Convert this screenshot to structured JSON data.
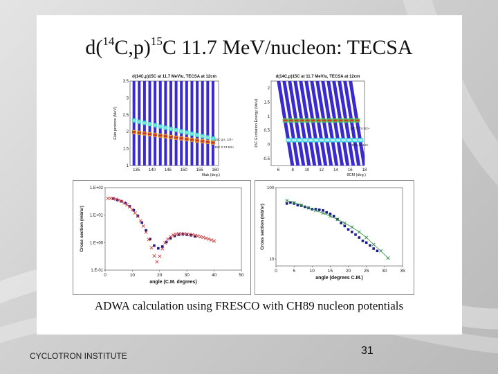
{
  "slide": {
    "title_main": "d(",
    "title_sup1": "14",
    "title_mid": "C,p)",
    "title_sup2": "15",
    "title_rest": "C 11.7 MeV/nucleon: TECSA",
    "caption": "ADWA calculation using FRESCO with CH89 nucleon potentials",
    "footer_left": "CYCLOTRON INSTITUTE",
    "page_number": "31"
  },
  "chart_data": [
    {
      "type": "heatmap",
      "title": "d(14C,p)15C at 11.7 MeV/u, TECSA at 12cm",
      "xlabel": "θlab (deg.)",
      "ylabel": "Elab protons (MeV)",
      "xlim": [
        133,
        161
      ],
      "ylim": [
        1,
        3.5
      ],
      "x_ticks": [
        "135",
        "140",
        "145",
        "150",
        "155",
        "160"
      ],
      "y_ticks": [
        "1",
        "1.5",
        "2",
        "2.5",
        "3",
        "3.5"
      ],
      "annotations": [
        "15C g.s. 1/2+",
        "15C 0.74 5/2+"
      ]
    },
    {
      "type": "heatmap",
      "title": "d(14C,p)15C at 11.7 MeV/u, TECSA at 12cm",
      "xlabel": "θCM (deg.)",
      "ylabel": "15C Excitation Energy (MeV)",
      "xlim": [
        5,
        18
      ],
      "ylim": [
        -0.75,
        2.25
      ],
      "x_ticks": [
        "6",
        "8",
        "10",
        "12",
        "14",
        "16",
        "18"
      ],
      "y_ticks": [
        "-0.5",
        "0",
        "0.5",
        "1",
        "1.5",
        "2"
      ],
      "annotations": [
        "15C 0.74 5/2+",
        "15C g.s. 1/2+"
      ]
    },
    {
      "type": "scatter",
      "xlabel": "angle (C.M. degrees)",
      "ylabel": "Cross section (mb/sr)",
      "xlim": [
        0,
        50
      ],
      "ylim": [
        0.1,
        100
      ],
      "log_y": true,
      "x_ticks": [
        "0",
        "10",
        "20",
        "30",
        "40",
        "50"
      ],
      "y_ticks": [
        "1.E-01",
        "1.E+00",
        "1.E+01",
        "1.E+02"
      ],
      "series": [
        {
          "marker": "square",
          "color": "#1a1a8c",
          "x": [
            3,
            4.5,
            6,
            7.5,
            9,
            10.5,
            12,
            13.5,
            15,
            16.5,
            18,
            19.5,
            21,
            22.5,
            24,
            25.5,
            27,
            28.5,
            30,
            31.5,
            33
          ],
          "y": [
            40,
            36,
            32,
            27,
            21,
            15,
            9.5,
            5.4,
            2.8,
            1.35,
            0.78,
            0.62,
            0.72,
            1.05,
            1.45,
            1.75,
            1.95,
            2.0,
            1.95,
            1.85,
            1.7
          ]
        },
        {
          "marker": "x",
          "color": "#d43c3c",
          "x": [
            1,
            2,
            3,
            4,
            5,
            6,
            7,
            8,
            9,
            10,
            11,
            12,
            13,
            14,
            15,
            16,
            17,
            18,
            19,
            20,
            21,
            22,
            23,
            24,
            25,
            26,
            27,
            28,
            29,
            30,
            31,
            32,
            33,
            34,
            35,
            36,
            37,
            38,
            39,
            40
          ],
          "y": [
            41,
            41,
            40,
            38,
            35,
            32,
            28,
            24,
            20,
            16,
            12,
            9,
            6.2,
            4,
            2.4,
            1.3,
            0.65,
            0.33,
            0.2,
            0.32,
            0.6,
            0.98,
            1.35,
            1.65,
            1.9,
            2.05,
            2.1,
            2.12,
            2.1,
            2.05,
            2.0,
            1.95,
            1.85,
            1.75,
            1.65,
            1.55,
            1.45,
            1.35,
            1.25,
            1.15
          ]
        }
      ]
    },
    {
      "type": "scatter",
      "xlabel": "angle (degrees C.M.)",
      "ylabel": "Cross section (mb/sr)",
      "xlim": [
        0,
        35
      ],
      "ylim": [
        8,
        100
      ],
      "log_y": true,
      "x_ticks": [
        "0",
        "5",
        "10",
        "15",
        "20",
        "25",
        "30",
        "35"
      ],
      "y_ticks": [
        "10",
        "100"
      ],
      "series": [
        {
          "marker": "square",
          "color": "#1a1a8c",
          "x": [
            3,
            4,
            5,
            6,
            7,
            8,
            9,
            10,
            11,
            12,
            13,
            14,
            15,
            16,
            17,
            18,
            19,
            20,
            21,
            22,
            23,
            24,
            25,
            26,
            27,
            28
          ],
          "y": [
            60,
            62,
            60,
            57,
            56,
            54,
            52,
            50,
            50,
            49,
            48,
            45,
            43,
            40,
            36,
            32,
            29,
            26,
            24,
            22,
            20,
            18,
            17,
            15.5,
            14,
            13
          ]
        },
        {
          "marker": "x",
          "color": "#2a8a3c",
          "x": [
            3,
            5,
            7,
            9,
            11,
            13,
            15,
            17,
            19,
            21,
            23,
            25,
            27,
            29,
            31
          ],
          "y": [
            66,
            62,
            57,
            52,
            48,
            44,
            40,
            36,
            32,
            28,
            24,
            20,
            16,
            13,
            10.3
          ]
        }
      ]
    }
  ]
}
